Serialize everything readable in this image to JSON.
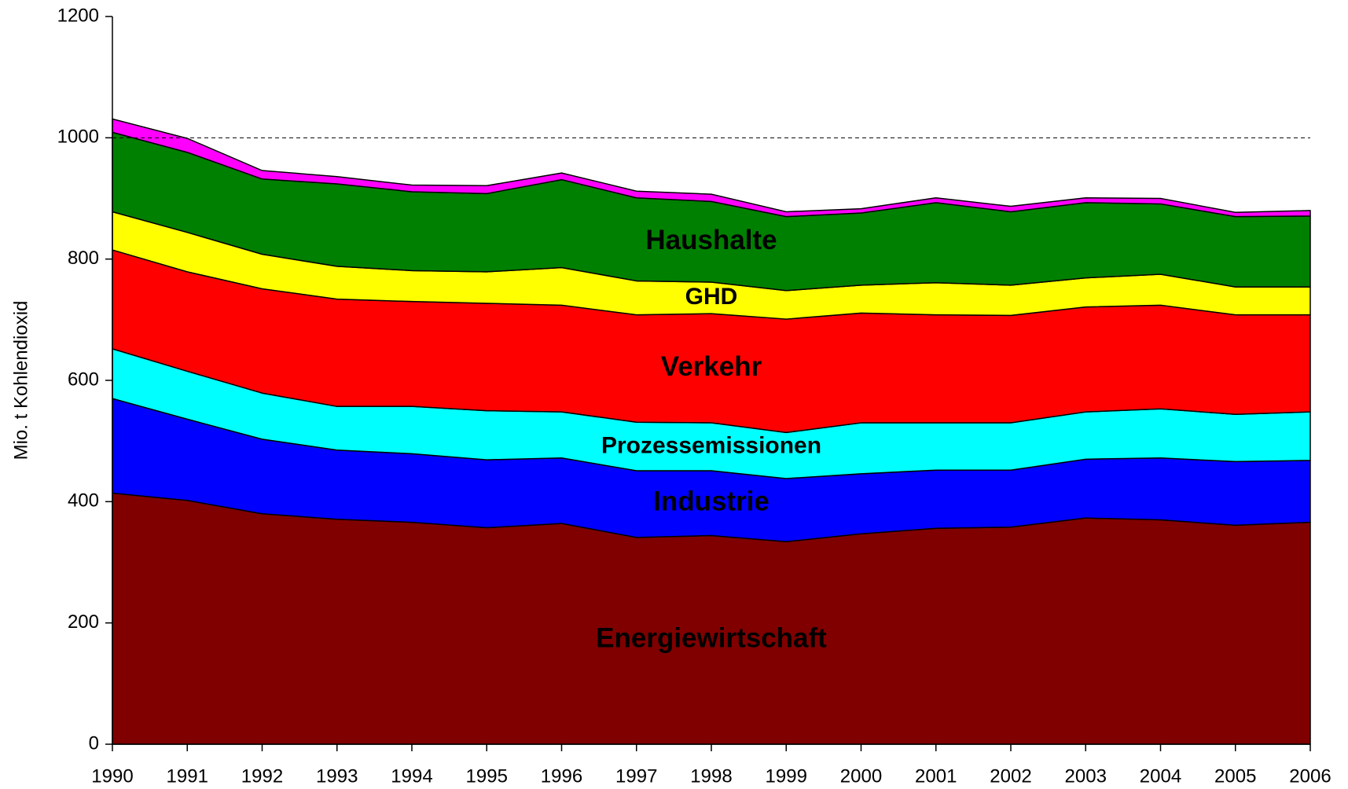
{
  "chart_data": {
    "type": "stacked_area",
    "y_label": "Mio. t Kohlendioxid",
    "x": [
      1990,
      1991,
      1992,
      1993,
      1994,
      1995,
      1996,
      1997,
      1998,
      1999,
      2000,
      2001,
      2002,
      2003,
      2004,
      2005,
      2006
    ],
    "xlim": [
      1990,
      2006
    ],
    "xticks": [
      1990,
      1991,
      1992,
      1993,
      1994,
      1995,
      1996,
      1997,
      1998,
      1999,
      2000,
      2001,
      2002,
      2003,
      2004,
      2005,
      2006
    ],
    "ylim": [
      0,
      1200
    ],
    "yticks": [
      0,
      200,
      400,
      600,
      800,
      1000,
      1200
    ],
    "reference_line": 1000,
    "series": [
      {
        "name": "Energiewirtschaft",
        "color": "#800000",
        "label_color": "#ffffff",
        "values": [
          414,
          402,
          380,
          371,
          366,
          357,
          364,
          341,
          344,
          334,
          347,
          356,
          358,
          373,
          370,
          361,
          366
        ]
      },
      {
        "name": "Industrie",
        "color": "#0000ff",
        "label_color": "#ffffff",
        "values": [
          156,
          134,
          123,
          114,
          113,
          112,
          108,
          110,
          107,
          104,
          99,
          96,
          94,
          97,
          102,
          105,
          102
        ]
      },
      {
        "name": "Prozessemissionen",
        "color": "#00ffff",
        "label_color": "#000000",
        "values": [
          82,
          79,
          76,
          72,
          78,
          81,
          76,
          80,
          79,
          76,
          84,
          78,
          78,
          78,
          81,
          78,
          80
        ]
      },
      {
        "name": "Verkehr",
        "color": "#ff0000",
        "label_color": "#ffffff",
        "values": [
          163,
          164,
          172,
          177,
          173,
          177,
          176,
          177,
          180,
          187,
          181,
          178,
          177,
          173,
          171,
          164,
          160
        ]
      },
      {
        "name": "GHD",
        "color": "#ffff00",
        "label_color": "#000000",
        "values": [
          63,
          65,
          57,
          54,
          51,
          52,
          62,
          56,
          52,
          47,
          46,
          53,
          50,
          48,
          51,
          46,
          46
        ]
      },
      {
        "name": "Haushalte",
        "color": "#008000",
        "label_color": "#ffffff",
        "values": [
          131,
          132,
          124,
          136,
          130,
          129,
          145,
          137,
          133,
          122,
          119,
          132,
          121,
          124,
          116,
          116,
          117
        ]
      },
      {
        "color": "#ff00ff",
        "values": [
          22,
          23,
          14,
          12,
          11,
          13,
          11,
          11,
          12,
          8,
          7,
          8,
          9,
          8,
          9,
          7,
          9
        ]
      }
    ]
  }
}
